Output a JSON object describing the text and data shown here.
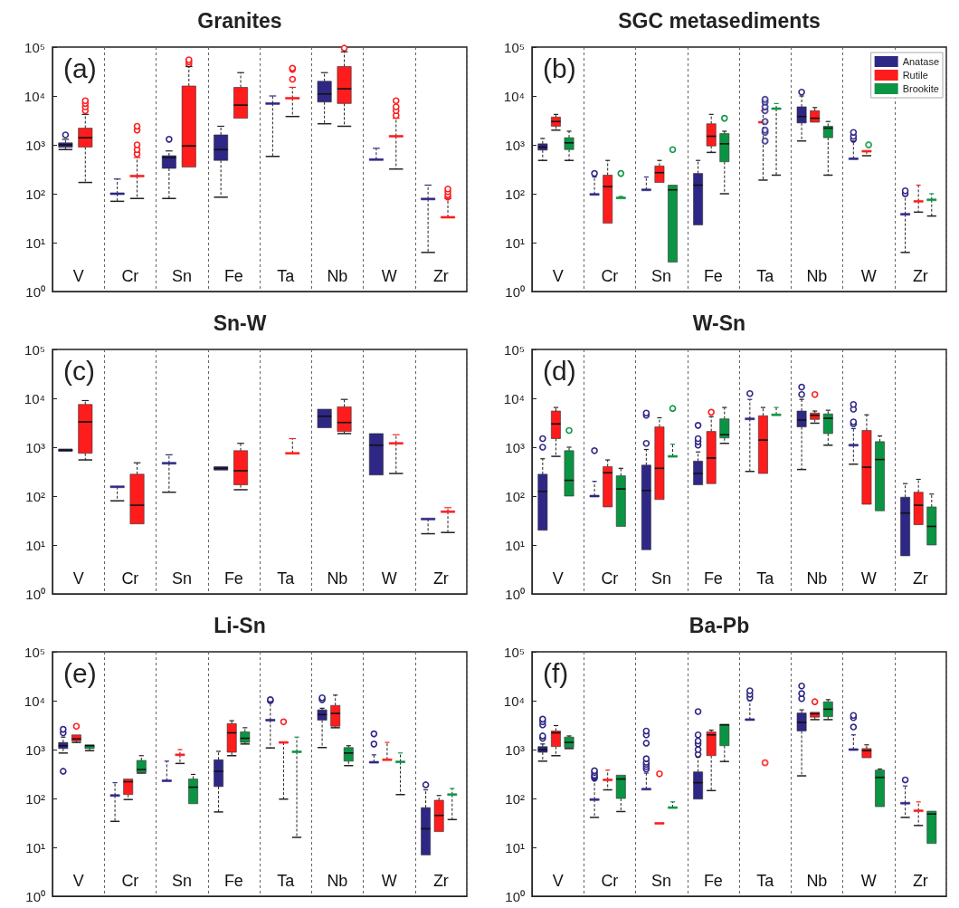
{
  "chart_data": [
    {
      "type": "box",
      "title": "Granites",
      "annotations": [
        "(a)"
      ],
      "categories": [
        "V",
        "Cr",
        "Sn",
        "Fe",
        "Ta",
        "Nb",
        "W",
        "Zr"
      ],
      "log": true,
      "grid": "x",
      "ylim": [
        1,
        100000
      ],
      "yticks": [
        {
          "value": 1,
          "label": "10⁰"
        },
        {
          "value": 10,
          "label": "10¹"
        },
        {
          "value": 100,
          "label": "10²"
        },
        {
          "value": 1000,
          "label": "10³"
        },
        {
          "value": 10000,
          "label": "10⁴"
        },
        {
          "value": 100000,
          "label": "10⁵"
        }
      ],
      "series": [
        {
          "color": "#2e2785",
          "boxes": [
            {
              "low": 800,
              "q1": 890,
              "median": 1000,
              "q3": 1100,
              "high": 1300,
              "outliers": [
                1600
              ]
            },
            {
              "low": 70,
              "q1": 100,
              "median": 100,
              "q3": 100,
              "high": 200
            },
            {
              "low": 80,
              "q1": 330,
              "median": 550,
              "q3": 600,
              "high": 750,
              "outliers": [
                1300
              ]
            },
            {
              "low": 85,
              "q1": 480,
              "median": 800,
              "q3": 1600,
              "high": 2400
            },
            {
              "low": 580,
              "q1": 7000,
              "median": 7000,
              "q3": 7000,
              "high": 10000
            },
            {
              "low": 2700,
              "q1": 7500,
              "median": 11000,
              "q3": 20000,
              "high": 30000
            },
            {
              "low": 500,
              "q1": 500,
              "median": 500,
              "q3": 500,
              "high": 850
            },
            {
              "low": 6.3,
              "q1": 78,
              "median": 78,
              "q3": 78,
              "high": 150
            }
          ]
        },
        {
          "color": "#ff1c1c",
          "boxes": [
            {
              "low": 170,
              "q1": 900,
              "median": 1400,
              "q3": 2200,
              "high": 4200,
              "outliers": [
                5000,
                6000,
                7000,
                8000
              ]
            },
            {
              "low": 80,
              "q1": 230,
              "median": 230,
              "q3": 230,
              "high": 550,
              "outliers": [
                650,
                800,
                1000,
                2000,
                2400
              ]
            },
            {
              "low": 350,
              "q1": 350,
              "median": 950,
              "q3": 16000,
              "high": 40000,
              "outliers": [
                45000,
                50000,
                55000
              ]
            },
            {
              "low": 3500,
              "q1": 3500,
              "median": 6500,
              "q3": 15000,
              "high": 30000
            },
            {
              "low": 3800,
              "q1": 9000,
              "median": 9000,
              "q3": 9000,
              "high": 15000,
              "outliers": [
                22000,
                35000,
                37000
              ]
            },
            {
              "low": 2400,
              "q1": 7000,
              "median": 14000,
              "q3": 40000,
              "high": 80000,
              "outliers": [
                95000
              ]
            },
            {
              "low": 320,
              "q1": 1500,
              "median": 1500,
              "q3": 1500,
              "high": 3500,
              "outliers": [
                4000,
                5000,
                6000,
                8000
              ]
            },
            {
              "low": 33,
              "q1": 33,
              "median": 33,
              "q3": 33,
              "high": 80,
              "outliers": [
                85,
                95,
                110,
                125
              ]
            }
          ]
        }
      ]
    },
    {
      "type": "box",
      "title": "SGC metasediments",
      "annotations": [
        "(b)"
      ],
      "categories": [
        "V",
        "Cr",
        "Sn",
        "Fe",
        "Ta",
        "Nb",
        "W",
        "Zr"
      ],
      "log": true,
      "grid": "x",
      "legend": "top right",
      "ylim": [
        1,
        100000
      ],
      "yticks": [
        {
          "value": 1,
          "label": "10⁰"
        },
        {
          "value": 10,
          "label": "10¹"
        },
        {
          "value": 100,
          "label": "10²"
        },
        {
          "value": 1000,
          "label": "10³"
        },
        {
          "value": 10000,
          "label": "10⁴"
        },
        {
          "value": 100000,
          "label": "10⁵"
        }
      ],
      "series": [
        {
          "name": "Anatase",
          "color": "#2e2785",
          "boxes": [
            {
              "low": 480,
              "q1": 780,
              "median": 900,
              "q3": 1050,
              "high": 1350
            },
            {
              "low": 97,
              "q1": 97,
              "median": 97,
              "q3": 97,
              "high": 220,
              "outliers": [
                260
              ]
            },
            {
              "low": 120,
              "q1": 120,
              "median": 120,
              "q3": 120,
              "high": 220
            },
            {
              "low": 23,
              "q1": 23,
              "median": 150,
              "q3": 260,
              "high": 480
            },
            null,
            {
              "low": 1200,
              "q1": 2800,
              "median": 3800,
              "q3": 6000,
              "high": 10000,
              "outliers": [
                12000
              ]
            },
            {
              "low": 520,
              "q1": 520,
              "median": 520,
              "q3": 520,
              "high": 1200,
              "outliers": [
                1300,
                1500,
                1800
              ]
            },
            {
              "low": 6.3,
              "q1": 38,
              "median": 38,
              "q3": 38,
              "high": 90,
              "outliers": [
                100,
                115
              ]
            }
          ]
        },
        {
          "name": "Rutile",
          "color": "#ff1c1c",
          "boxes": [
            {
              "low": 2000,
              "q1": 2400,
              "median": 3000,
              "q3": 3700,
              "high": 4200
            },
            {
              "low": 25,
              "q1": 25,
              "median": 140,
              "q3": 240,
              "high": 480
            },
            {
              "low": 170,
              "q1": 170,
              "median": 270,
              "q3": 370,
              "high": 480
            },
            {
              "low": 700,
              "q1": 950,
              "median": 1500,
              "q3": 2700,
              "high": 4200
            },
            {
              "low": 190,
              "q1": 2900,
              "median": 2900,
              "q3": 2900,
              "high": 5000
            },
            {
              "low": 2900,
              "q1": 2900,
              "median": 3500,
              "q3": 5000,
              "high": 5800
            },
            {
              "low": 600,
              "q1": 740,
              "median": 740,
              "q3": 740,
              "high": 740
            },
            {
              "low": 42,
              "q1": 70,
              "median": 70,
              "q3": 70,
              "high": 150
            }
          ]
        },
        {
          "name": "Brookite",
          "color": "#0b9444",
          "boxes": [
            {
              "low": 480,
              "q1": 800,
              "median": 1100,
              "q3": 1400,
              "high": 1900
            },
            {
              "low": 82,
              "q1": 82,
              "median": 82,
              "q3": 82,
              "high": 88,
              "outliers": [
                260
              ]
            },
            {
              "low": 4,
              "q1": 4,
              "median": 120,
              "q3": 150,
              "high": 150,
              "outliers": [
                800
              ]
            },
            {
              "low": 100,
              "q1": 450,
              "median": 1050,
              "q3": 1700,
              "high": 1900,
              "outliers": [
                3500
              ]
            },
            {
              "low": 240,
              "q1": 5500,
              "median": 5500,
              "q3": 5500,
              "high": 7000
            },
            {
              "low": 240,
              "q1": 1400,
              "median": 2200,
              "q3": 2400,
              "high": 3000
            },
            null,
            {
              "low": 35,
              "q1": 75,
              "median": 75,
              "q3": 75,
              "high": 100
            }
          ]
        },
        {
          "type": "scatter",
          "color": "#2e2785",
          "x": [
            "Ta",
            "Ta",
            "Ta",
            "Ta",
            "Ta",
            "Ta",
            "Ta",
            "Ta"
          ],
          "values": [
            1200,
            1800,
            2000,
            3000,
            5000,
            6000,
            7500,
            8500
          ]
        },
        {
          "type": "scatter",
          "color": "#0b9444",
          "x": [
            "W"
          ],
          "values": [
            1000
          ]
        }
      ]
    },
    {
      "type": "box",
      "title": "Sn-W",
      "annotations": [
        "(c)"
      ],
      "categories": [
        "V",
        "Cr",
        "Sn",
        "Fe",
        "Ta",
        "Nb",
        "W",
        "Zr"
      ],
      "log": true,
      "grid": "x",
      "ylim": [
        1,
        100000
      ],
      "yticks": [
        {
          "value": 1,
          "label": "10⁰"
        },
        {
          "value": 10,
          "label": "10¹"
        },
        {
          "value": 100,
          "label": "10²"
        },
        {
          "value": 1000,
          "label": "10³"
        },
        {
          "value": 10000,
          "label": "10⁴"
        },
        {
          "value": 100000,
          "label": "10⁵"
        }
      ],
      "series": [
        {
          "color": "#2e2785",
          "boxes": [
            {
              "low": 820,
              "q1": 820,
              "median": 870,
              "q3": 920,
              "high": 920
            },
            {
              "low": 80,
              "q1": 155,
              "median": 155,
              "q3": 155,
              "high": 155
            },
            {
              "low": 120,
              "q1": 470,
              "median": 470,
              "q3": 470,
              "high": 700
            },
            {
              "low": 340,
              "q1": 340,
              "median": 370,
              "q3": 400,
              "high": 400
            },
            null,
            {
              "low": 2500,
              "q1": 2500,
              "median": 4300,
              "q3": 6000,
              "high": 6000
            },
            {
              "low": 270,
              "q1": 270,
              "median": 1100,
              "q3": 1900,
              "high": 1900
            },
            {
              "low": 17,
              "q1": 34,
              "median": 34,
              "q3": 34,
              "high": 34
            }
          ]
        },
        {
          "color": "#ff1c1c",
          "boxes": [
            {
              "low": 550,
              "q1": 750,
              "median": 3300,
              "q3": 7500,
              "high": 9000
            },
            {
              "low": 27,
              "q1": 27,
              "median": 65,
              "q3": 280,
              "high": 480
            },
            null,
            {
              "low": 135,
              "q1": 170,
              "median": 330,
              "q3": 850,
              "high": 1200
            },
            {
              "low": 750,
              "q1": 750,
              "median": 750,
              "q3": 750,
              "high": 1500
            },
            {
              "low": 1900,
              "q1": 2100,
              "median": 3200,
              "q3": 6700,
              "high": 9500
            },
            {
              "low": 290,
              "q1": 1200,
              "median": 1200,
              "q3": 1200,
              "high": 1800
            },
            {
              "low": 18,
              "q1": 48,
              "median": 48,
              "q3": 48,
              "high": 58
            }
          ]
        }
      ]
    },
    {
      "type": "box",
      "title": "W-Sn",
      "annotations": [
        "(d)"
      ],
      "categories": [
        "V",
        "Cr",
        "Sn",
        "Fe",
        "Ta",
        "Nb",
        "W",
        "Zr"
      ],
      "log": true,
      "grid": "x",
      "ylim": [
        1,
        100000
      ],
      "yticks": [
        {
          "value": 1,
          "label": "10⁰"
        },
        {
          "value": 10,
          "label": "10¹"
        },
        {
          "value": 100,
          "label": "10²"
        },
        {
          "value": 1000,
          "label": "10³"
        },
        {
          "value": 10000,
          "label": "10⁴"
        },
        {
          "value": 100000,
          "label": "10⁵"
        }
      ],
      "series": [
        {
          "color": "#2e2785",
          "boxes": [
            {
              "low": 20,
              "q1": 20,
              "median": 125,
              "q3": 280,
              "high": 580,
              "outliers": [
                1000,
                1500
              ]
            },
            {
              "low": 100,
              "q1": 100,
              "median": 100,
              "q3": 100,
              "high": 200,
              "outliers": [
                850
              ]
            },
            {
              "low": 8,
              "q1": 8,
              "median": 130,
              "q3": 430,
              "high": 900,
              "outliers": [
                1200,
                4500,
                5000
              ]
            },
            {
              "low": 170,
              "q1": 170,
              "median": 290,
              "q3": 520,
              "high": 800,
              "outliers": [
                1100,
                1300,
                1500,
                2800
              ]
            },
            {
              "low": 320,
              "q1": 3800,
              "median": 3800,
              "q3": 3800,
              "high": 9500,
              "outliers": [
                12500
              ]
            },
            {
              "low": 350,
              "q1": 2600,
              "median": 3600,
              "q3": 5500,
              "high": 9500,
              "outliers": [
                12000,
                17000
              ]
            },
            {
              "low": 450,
              "q1": 1100,
              "median": 1100,
              "q3": 1100,
              "high": 2400,
              "outliers": [
                3000,
                3300,
                6000,
                7500
              ]
            },
            {
              "low": 6,
              "q1": 6,
              "median": 45,
              "q3": 95,
              "high": 180
            }
          ]
        },
        {
          "color": "#ff1c1c",
          "boxes": [
            {
              "low": 650,
              "q1": 1500,
              "median": 3000,
              "q3": 5500,
              "high": 6500
            },
            {
              "low": 60,
              "q1": 60,
              "median": 300,
              "q3": 400,
              "high": 550
            },
            {
              "low": 85,
              "q1": 85,
              "median": 370,
              "q3": 2600,
              "high": 4000
            },
            {
              "low": 180,
              "q1": 180,
              "median": 600,
              "q3": 2100,
              "high": 4200,
              "outliers": [
                5200
              ]
            },
            {
              "low": 290,
              "q1": 290,
              "median": 1400,
              "q3": 4400,
              "high": 6500
            },
            {
              "low": 3100,
              "q1": 3700,
              "median": 4500,
              "q3": 5000,
              "high": 5500,
              "outliers": [
                12000
              ]
            },
            {
              "low": 68,
              "q1": 68,
              "median": 390,
              "q3": 2200,
              "high": 4600
            },
            {
              "low": 26,
              "q1": 26,
              "median": 65,
              "q3": 120,
              "high": 220
            }
          ]
        },
        {
          "color": "#0b9444",
          "boxes": [
            {
              "low": 100,
              "q1": 100,
              "median": 210,
              "q3": 850,
              "high": 1000,
              "outliers": [
                2200
              ]
            },
            {
              "low": 24,
              "q1": 24,
              "median": 140,
              "q3": 260,
              "high": 370
            },
            {
              "low": 650,
              "q1": 650,
              "median": 650,
              "q3": 650,
              "high": 1150,
              "outliers": [
                6200
              ]
            },
            {
              "low": 1200,
              "q1": 1550,
              "median": 1800,
              "q3": 3800,
              "high": 6500
            },
            {
              "low": 4600,
              "q1": 4600,
              "median": 4600,
              "q3": 4600,
              "high": 6500
            },
            {
              "low": 1100,
              "q1": 1900,
              "median": 3900,
              "q3": 4800,
              "high": 5700
            },
            {
              "low": 50,
              "q1": 50,
              "median": 560,
              "q3": 1300,
              "high": 1700
            },
            {
              "low": 10,
              "q1": 10,
              "median": 24,
              "q3": 60,
              "high": 110
            }
          ]
        }
      ]
    },
    {
      "type": "box",
      "title": "Li-Sn",
      "annotations": [
        "(e)"
      ],
      "categories": [
        "V",
        "Cr",
        "Sn",
        "Fe",
        "Ta",
        "Nb",
        "W",
        "Zr"
      ],
      "log": true,
      "grid": "x",
      "ylim": [
        1,
        100000
      ],
      "yticks": [
        {
          "value": 1,
          "label": "10⁰"
        },
        {
          "value": 10,
          "label": "10¹"
        },
        {
          "value": 100,
          "label": "10²"
        },
        {
          "value": 1000,
          "label": "10³"
        },
        {
          "value": 10000,
          "label": "10⁴"
        },
        {
          "value": 100000,
          "label": "10⁵"
        }
      ],
      "series": [
        {
          "color": "#2e2785",
          "boxes": [
            {
              "low": 850,
              "q1": 1050,
              "median": 1200,
              "q3": 1400,
              "high": 1800,
              "outliers": [
                360,
                2200,
                2600
              ]
            },
            {
              "low": 34,
              "q1": 115,
              "median": 115,
              "q3": 115,
              "high": 210
            },
            {
              "low": 230,
              "q1": 230,
              "median": 230,
              "q3": 230,
              "high": 580
            },
            {
              "low": 53,
              "q1": 175,
              "median": 360,
              "q3": 620,
              "high": 920
            },
            {
              "low": 1080,
              "q1": 4000,
              "median": 4000,
              "q3": 4000,
              "high": 9500,
              "outliers": [
                10000,
                10500
              ]
            },
            {
              "low": 1100,
              "q1": 4000,
              "median": 5200,
              "q3": 6500,
              "high": 7000,
              "outliers": [
                10500,
                11500
              ]
            },
            {
              "low": 550,
              "q1": 550,
              "median": 550,
              "q3": 550,
              "high": 780,
              "outliers": [
                1300,
                2100
              ]
            },
            {
              "low": 7,
              "q1": 7,
              "median": 24,
              "q3": 65,
              "high": 150,
              "outliers": [
                190
              ]
            }
          ]
        },
        {
          "color": "#ff1c1c",
          "boxes": [
            {
              "low": 1400,
              "q1": 1500,
              "median": 1650,
              "q3": 2000,
              "high": 2000,
              "outliers": [
                3000
              ]
            },
            {
              "low": 95,
              "q1": 120,
              "median": 220,
              "q3": 250,
              "high": 250
            },
            {
              "low": 520,
              "q1": 780,
              "median": 780,
              "q3": 780,
              "high": 1000
            },
            {
              "low": 750,
              "q1": 880,
              "median": 2200,
              "q3": 3400,
              "high": 3900
            },
            {
              "low": 97,
              "q1": 1400,
              "median": 1400,
              "q3": 1400,
              "high": 1400,
              "outliers": [
                3700
              ]
            },
            {
              "low": 2800,
              "q1": 3000,
              "median": 5500,
              "q3": 8000,
              "high": 13000
            },
            {
              "low": 620,
              "q1": 620,
              "median": 620,
              "q3": 620,
              "high": 1400
            },
            {
              "low": 21,
              "q1": 21,
              "median": 45,
              "q3": 92,
              "high": 115
            }
          ]
        },
        {
          "color": "#0b9444",
          "boxes": [
            {
              "low": 950,
              "q1": 1050,
              "median": 1200,
              "q3": 1250,
              "high": 1250
            },
            {
              "low": 330,
              "q1": 340,
              "median": 390,
              "q3": 600,
              "high": 750
            },
            {
              "low": 78,
              "q1": 78,
              "median": 170,
              "q3": 250,
              "high": 310
            },
            {
              "low": 1300,
              "q1": 1400,
              "median": 1700,
              "q3": 2300,
              "high": 2800
            },
            {
              "low": 16,
              "q1": 900,
              "median": 900,
              "q3": 900,
              "high": 1800
            },
            {
              "low": 470,
              "q1": 580,
              "median": 850,
              "q3": 1100,
              "high": 1200
            },
            {
              "low": 120,
              "q1": 560,
              "median": 560,
              "q3": 560,
              "high": 850
            },
            {
              "low": 37,
              "q1": 120,
              "median": 120,
              "q3": 120,
              "high": 160
            }
          ]
        }
      ]
    },
    {
      "type": "box",
      "title": "Ba-Pb",
      "annotations": [
        "(f)"
      ],
      "categories": [
        "V",
        "Cr",
        "Sn",
        "Fe",
        "Ta",
        "Nb",
        "W",
        "Zr"
      ],
      "log": true,
      "grid": "x",
      "ylim": [
        1,
        100000
      ],
      "yticks": [
        {
          "value": 1,
          "label": "10⁰"
        },
        {
          "value": 10,
          "label": "10¹"
        },
        {
          "value": 100,
          "label": "10²"
        },
        {
          "value": 1000,
          "label": "10³"
        },
        {
          "value": 10000,
          "label": "10⁴"
        },
        {
          "value": 100000,
          "label": "10⁵"
        }
      ],
      "series": [
        {
          "color": "#2e2785",
          "boxes": [
            {
              "low": 580,
              "q1": 880,
              "median": 1000,
              "q3": 1150,
              "high": 1300,
              "outliers": [
                1700,
                1900,
                3200,
                3700,
                4200
              ]
            },
            {
              "low": 41,
              "q1": 95,
              "median": 95,
              "q3": 95,
              "high": 240,
              "outliers": [
                260,
                280,
                300,
                340,
                370
              ]
            },
            {
              "low": 155,
              "q1": 155,
              "median": 155,
              "q3": 155,
              "high": 330,
              "outliers": [
                400,
                450,
                500,
                550,
                650,
                1350,
                2000,
                2400
              ]
            },
            {
              "low": 97,
              "q1": 97,
              "median": 210,
              "q3": 350,
              "high": 700,
              "outliers": [
                800,
                1000,
                1300,
                1500,
                2000,
                6000
              ]
            },
            {
              "low": 4100,
              "q1": 4100,
              "median": 4100,
              "q3": 4100,
              "high": 10000,
              "outliers": [
                11500,
                13500,
                16000
              ]
            },
            {
              "low": 290,
              "q1": 2400,
              "median": 3600,
              "q3": 5600,
              "high": 6500,
              "outliers": [
                11000,
                14000,
                20000
              ]
            },
            {
              "low": 1000,
              "q1": 1000,
              "median": 1000,
              "q3": 1000,
              "high": 2000,
              "outliers": [
                2900,
                4500,
                5000
              ]
            },
            {
              "low": 41,
              "q1": 80,
              "median": 80,
              "q3": 80,
              "high": 180,
              "outliers": [
                240
              ]
            }
          ]
        },
        {
          "color": "#ff1c1c",
          "boxes": [
            {
              "low": 750,
              "q1": 1150,
              "median": 2200,
              "q3": 2400,
              "high": 3100
            },
            {
              "low": 150,
              "q1": 240,
              "median": 240,
              "q3": 240,
              "high": 380
            },
            {
              "low": 31,
              "q1": 31,
              "median": 31,
              "q3": 31,
              "high": 31,
              "outliers": [
                320
              ]
            },
            {
              "low": 145,
              "q1": 750,
              "median": 2000,
              "q3": 2300,
              "high": 2500
            },
            null,
            {
              "low": 4100,
              "q1": 4600,
              "median": 5400,
              "q3": 5800,
              "high": 5800,
              "outliers": [
                9500
              ]
            },
            {
              "low": 680,
              "q1": 680,
              "median": 950,
              "q3": 1050,
              "high": 1250
            },
            {
              "low": 28,
              "q1": 56,
              "median": 56,
              "q3": 56,
              "high": 85
            }
          ]
        },
        {
          "color": "#0b9444",
          "boxes": [
            {
              "low": 1050,
              "q1": 1100,
              "median": 1400,
              "q3": 1800,
              "high": 1900
            },
            {
              "low": 54,
              "q1": 100,
              "median": 250,
              "q3": 300,
              "high": 300
            },
            {
              "low": 65,
              "q1": 65,
              "median": 65,
              "q3": 65,
              "high": 85
            },
            {
              "low": 570,
              "q1": 1200,
              "median": 3200,
              "q3": 3300,
              "high": 3300
            },
            null,
            {
              "low": 4100,
              "q1": 4700,
              "median": 6700,
              "q3": 9500,
              "high": 10500
            },
            {
              "low": 68,
              "q1": 68,
              "median": 270,
              "q3": 380,
              "high": 400
            },
            {
              "low": 12,
              "q1": 12,
              "median": 48,
              "q3": 55,
              "high": 55
            }
          ]
        },
        {
          "type": "scatter",
          "color": "#ff1c1c",
          "x": [
            "Ta"
          ],
          "values": [
            540
          ]
        }
      ]
    }
  ]
}
